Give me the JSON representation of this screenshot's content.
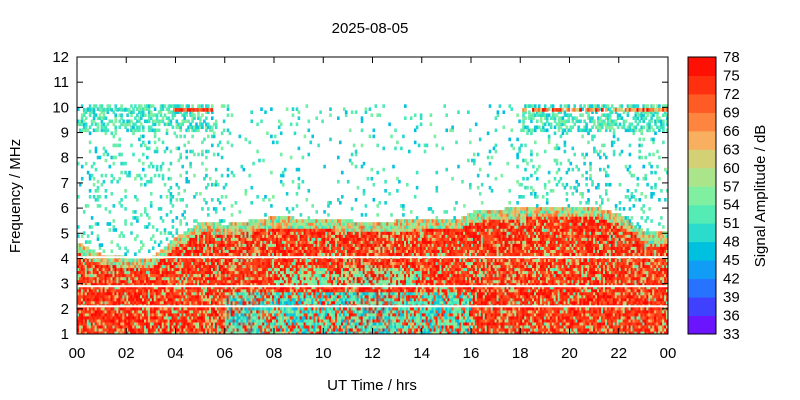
{
  "chart_data": {
    "type": "heatmap",
    "title": "2025-08-05",
    "xlabel": "UT Time / hrs",
    "ylabel": "Frequency / MHz",
    "colorbar_label": "Signal Amplitude / dB",
    "xlim": [
      0,
      24
    ],
    "ylim": [
      1,
      12
    ],
    "x_ticks": [
      "00",
      "02",
      "04",
      "06",
      "08",
      "10",
      "12",
      "14",
      "16",
      "18",
      "20",
      "22",
      "00"
    ],
    "y_ticks": [
      "1",
      "2",
      "3",
      "4",
      "5",
      "6",
      "7",
      "8",
      "9",
      "10",
      "11",
      "12"
    ],
    "colorbar_ticks": [
      "33",
      "36",
      "39",
      "42",
      "45",
      "48",
      "51",
      "54",
      "57",
      "60",
      "63",
      "66",
      "69",
      "72",
      "75",
      "78"
    ],
    "color_range": [
      33,
      78
    ],
    "colormap": [
      "#8000ff",
      "#4040ff",
      "#1a8cff",
      "#00c0e0",
      "#40e8c0",
      "#80f0a0",
      "#c0e080",
      "#f8b060",
      "#ff7030",
      "#ff3010",
      "#ff0000"
    ],
    "grid": false,
    "regions": [
      {
        "name": "high-intensity band",
        "x": [
          0,
          24
        ],
        "y_top": [
          4.6,
          4.1,
          4.0,
          4.0,
          4.8,
          5.4,
          5.3,
          5.6,
          5.5,
          5.4,
          5.5,
          5.5,
          5.8,
          5.9,
          6.0,
          6.0,
          5.7,
          5.0,
          5.0
        ],
        "x_samples": [
          0,
          1,
          2,
          3,
          4,
          5,
          6,
          8,
          10,
          12,
          14,
          15.5,
          16,
          17,
          19,
          21,
          22,
          23,
          24
        ],
        "amplitude_db": [
          60,
          78
        ]
      },
      {
        "name": "scattered returns",
        "y": [
          5,
          10
        ],
        "amplitude_db": [
          45,
          57
        ]
      },
      {
        "name": "spread-F patch",
        "x": [
          0,
          5.5
        ],
        "y": [
          9,
          10
        ],
        "amplitude_db": [
          45,
          78
        ]
      },
      {
        "name": "spread-F patch",
        "x": [
          18,
          24
        ],
        "y": [
          9,
          10
        ],
        "amplitude_db": [
          45,
          78
        ]
      }
    ]
  }
}
